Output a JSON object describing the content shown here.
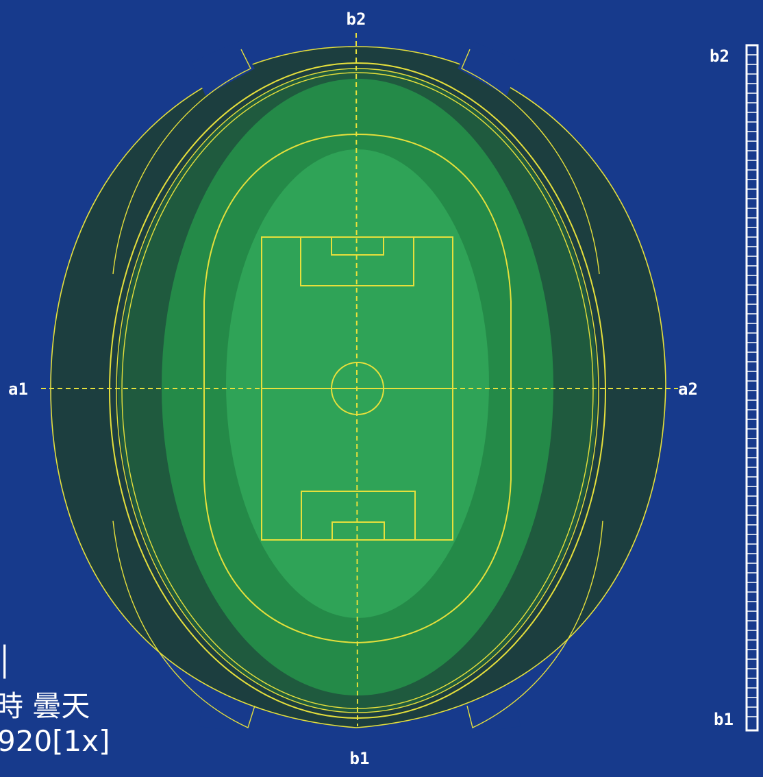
{
  "axes": {
    "top_label": "b2",
    "bottom_label": "b1",
    "left_label": "a1",
    "right_label": "a2"
  },
  "side_bar": {
    "top_label": "b2",
    "bottom_label": "b1"
  },
  "caption": {
    "line1": "│",
    "line2": "時 曇天",
    "line3": "920[1x]"
  },
  "colors": {
    "background": "#173a8c",
    "outer_zone": "#1c3e3f",
    "mid_zone": "#1f5a3e",
    "inner_zone": "#248a48",
    "center_zone": "#2fa357",
    "lines": "#e6e03c",
    "text": "#ffffff"
  }
}
